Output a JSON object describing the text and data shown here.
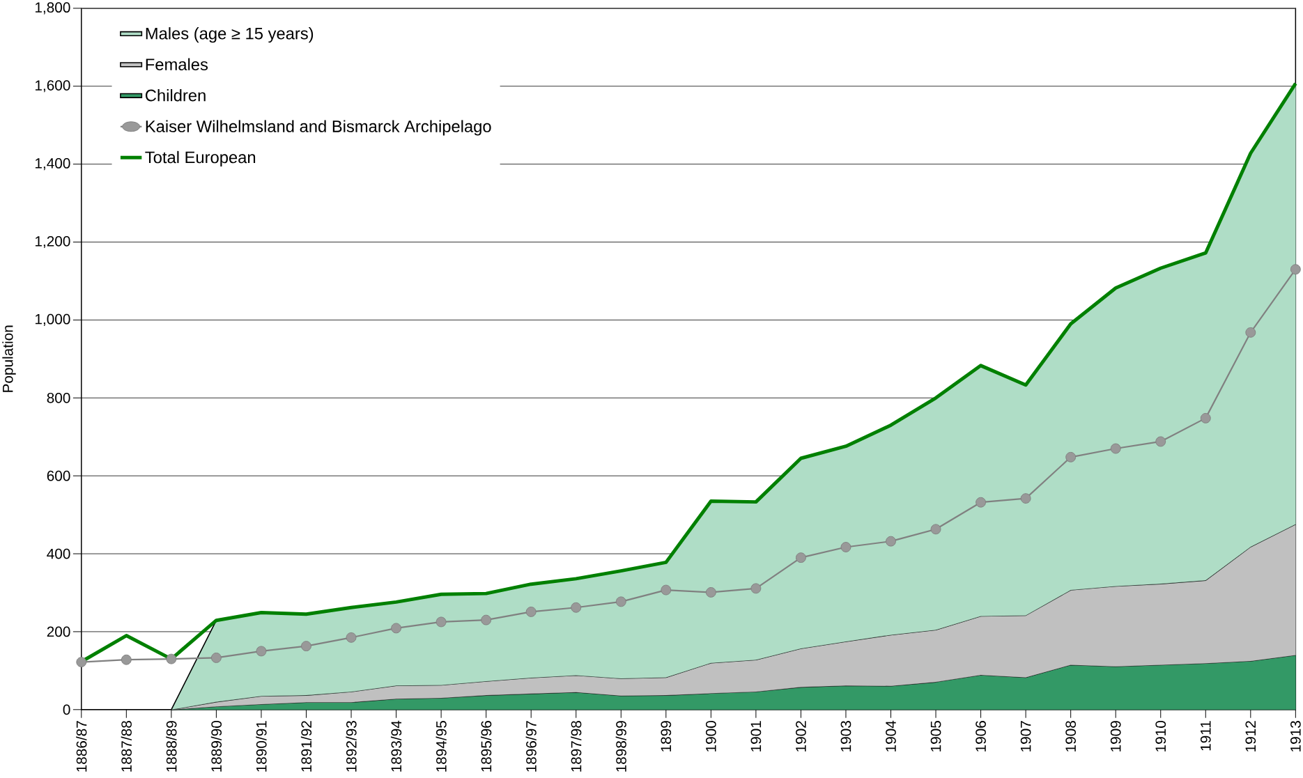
{
  "chart_data": {
    "type": "area",
    "stacked": true,
    "ylabel": "Population",
    "categories": [
      "1886/87",
      "1887/88",
      "1888/89",
      "1889/90",
      "1890/91",
      "1891/92",
      "1892/93",
      "1893/94",
      "1894/95",
      "1895/96",
      "1896/97",
      "1897/98",
      "1898/99",
      "1899",
      "1900",
      "1901",
      "1902",
      "1903",
      "1904",
      "1905",
      "1906",
      "1907",
      "1908",
      "1909",
      "1910",
      "1911",
      "1912",
      "1913"
    ],
    "series": [
      {
        "name": "Children",
        "color": "#339966",
        "values": [
          null,
          null,
          0,
          8,
          14,
          19,
          19,
          28,
          30,
          37,
          41,
          45,
          36,
          37,
          42,
          46,
          58,
          62,
          61,
          71,
          89,
          83,
          115,
          111,
          115,
          119,
          125,
          140
        ]
      },
      {
        "name": "Females",
        "color": "#c0c0c0",
        "values": [
          null,
          null,
          0,
          12,
          21,
          18,
          27,
          34,
          33,
          36,
          41,
          43,
          44,
          46,
          78,
          82,
          99,
          113,
          131,
          134,
          151,
          159,
          192,
          206,
          208,
          213,
          293,
          336
        ]
      },
      {
        "name": "Males (age ≥ 15 years)",
        "color": "#afddc6",
        "values": [
          null,
          null,
          0,
          209,
          214,
          208,
          216,
          214,
          233,
          225,
          240,
          248,
          276,
          295,
          415,
          405,
          488,
          501,
          538,
          595,
          643,
          591,
          683,
          767,
          810,
          840,
          1010,
          1131
        ]
      },
      {
        "name": "Kaiser Wilhelmsland and  Bismarck Archipelago",
        "type": "line",
        "color": "#808080",
        "marker": "circle",
        "values": [
          122,
          128,
          130,
          133,
          150,
          163,
          185,
          209,
          225,
          230,
          251,
          262,
          277,
          307,
          301,
          311,
          390,
          417,
          432,
          463,
          532,
          542,
          648,
          670,
          688,
          748,
          968,
          1130
        ]
      },
      {
        "name": "Total European",
        "type": "line",
        "color": "#008000",
        "values": [
          123,
          190,
          130,
          229,
          249,
          245,
          262,
          276,
          296,
          298,
          322,
          336,
          356,
          378,
          535,
          533,
          645,
          676,
          730,
          800,
          883,
          833,
          990,
          1082,
          1133,
          1172,
          1428,
          1607
        ]
      }
    ],
    "ylim": [
      0,
      1800
    ],
    "yticks": [
      0,
      200,
      400,
      600,
      800,
      {
        "value": 1000,
        "label": "1,000"
      },
      {
        "value": 1200,
        "label": "1,200"
      },
      {
        "value": 1400,
        "label": "1,400"
      },
      {
        "value": 1600,
        "label": "1,600"
      },
      {
        "value": 1800,
        "label": "1,800"
      }
    ],
    "grid": "y",
    "legend": "top left"
  }
}
